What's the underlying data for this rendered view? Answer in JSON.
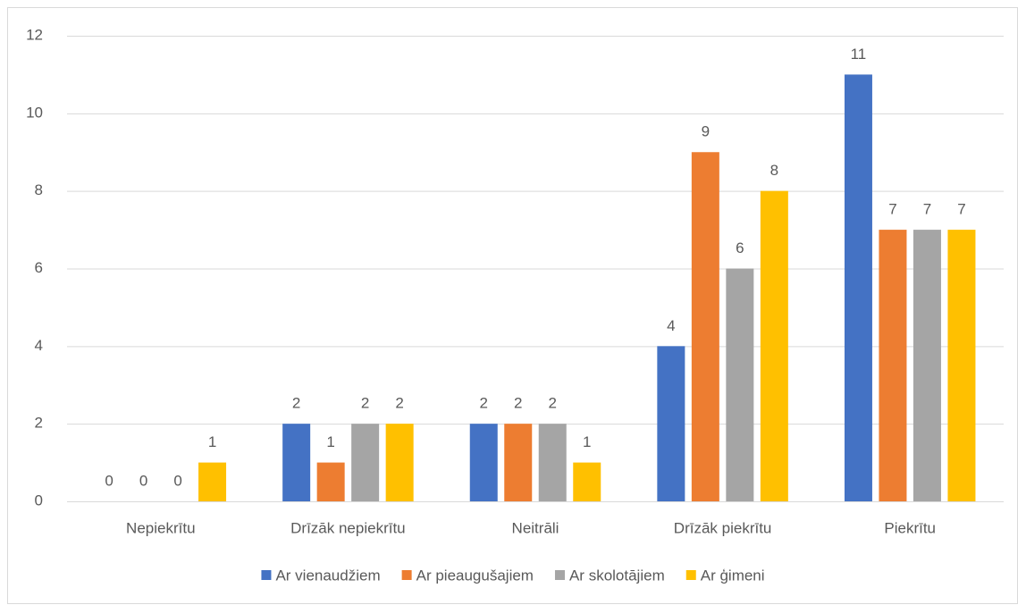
{
  "chart_data": {
    "type": "bar",
    "categories": [
      "Nepiekrītu",
      "Drīzāk nepiekrītu",
      "Neitrāli",
      "Drīzāk piekrītu",
      "Piekrītu"
    ],
    "series": [
      {
        "name": "Ar vienaudžiem",
        "color": "#4472c4",
        "values": [
          0,
          2,
          2,
          4,
          11
        ]
      },
      {
        "name": "Ar pieaugušajiem",
        "color": "#ed7d31",
        "values": [
          0,
          1,
          2,
          9,
          7
        ]
      },
      {
        "name": "Ar skolotājiem",
        "color": "#a5a5a5",
        "values": [
          0,
          2,
          2,
          6,
          7
        ]
      },
      {
        "name": "Ar ģimeni",
        "color": "#ffc000",
        "values": [
          1,
          2,
          1,
          8,
          7
        ]
      }
    ],
    "ylim": [
      0,
      12
    ],
    "yticks": [
      0,
      2,
      4,
      6,
      8,
      10,
      12
    ],
    "grid": true,
    "legend": "bottom"
  }
}
